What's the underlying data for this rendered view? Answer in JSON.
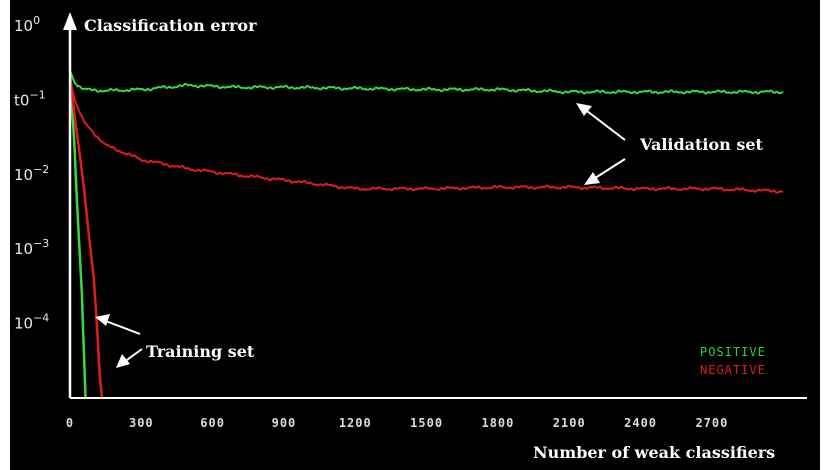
{
  "chart_data": {
    "type": "line",
    "ylabel": "Classification error",
    "xlabel": "Number of weak classifiers",
    "y_scale": "log",
    "ylim": [
      1e-05,
      1
    ],
    "xlim": [
      0,
      3100
    ],
    "ytick_exponents": [
      "0",
      "−1",
      "−2",
      "−3",
      "−4"
    ],
    "ytick_bases": [
      "10",
      "t0",
      "10",
      "10",
      "10"
    ],
    "xticks": [
      "0",
      "300",
      "600",
      "900",
      "1200",
      "1500",
      "1800",
      "2100",
      "2400",
      "2700"
    ],
    "xtick_values": [
      0,
      300,
      600,
      900,
      1200,
      1500,
      1800,
      2100,
      2400,
      2700
    ],
    "grid": false,
    "legend": {
      "placement": "bottom-right",
      "entries": [
        {
          "label": "POSITIVE",
          "color": "#2fd02f"
        },
        {
          "label": "NEGATIVE",
          "color": "#e01c1c"
        }
      ]
    },
    "annotations": {
      "validation": "Validation set",
      "training": "Training set"
    },
    "series": [
      {
        "legend": "POSITIVE",
        "set": "validation",
        "color": "#3ad83a",
        "x": [
          0,
          20,
          60,
          150,
          300,
          500,
          700,
          900,
          1200,
          1500,
          1800,
          2100,
          2400,
          2700,
          3000
        ],
        "y": [
          0.25,
          0.17,
          0.14,
          0.135,
          0.14,
          0.16,
          0.15,
          0.15,
          0.145,
          0.14,
          0.14,
          0.13,
          0.13,
          0.13,
          0.13
        ]
      },
      {
        "legend": "NEGATIVE",
        "set": "validation",
        "color": "#e01c1c",
        "x": [
          0,
          20,
          60,
          150,
          300,
          500,
          700,
          900,
          1200,
          1500,
          1800,
          2100,
          2400,
          2700,
          3000
        ],
        "y": [
          0.2,
          0.1,
          0.05,
          0.025,
          0.016,
          0.012,
          0.01,
          0.0085,
          0.0065,
          0.0065,
          0.0068,
          0.0068,
          0.0065,
          0.0065,
          0.006
        ]
      },
      {
        "legend": "POSITIVE",
        "set": "training",
        "color": "#3ad83a",
        "x": [
          0,
          10,
          20,
          30,
          40,
          50,
          55,
          60,
          65
        ],
        "y": [
          0.25,
          0.07,
          0.02,
          0.004,
          0.001,
          0.00025,
          8e-05,
          3e-05,
          1e-05
        ]
      },
      {
        "legend": "NEGATIVE",
        "set": "training",
        "color": "#e01c1c",
        "x": [
          0,
          20,
          40,
          60,
          80,
          100,
          115,
          125,
          135
        ],
        "y": [
          0.2,
          0.06,
          0.02,
          0.006,
          0.0015,
          0.0004,
          8e-05,
          2e-05,
          1e-05
        ]
      }
    ]
  }
}
